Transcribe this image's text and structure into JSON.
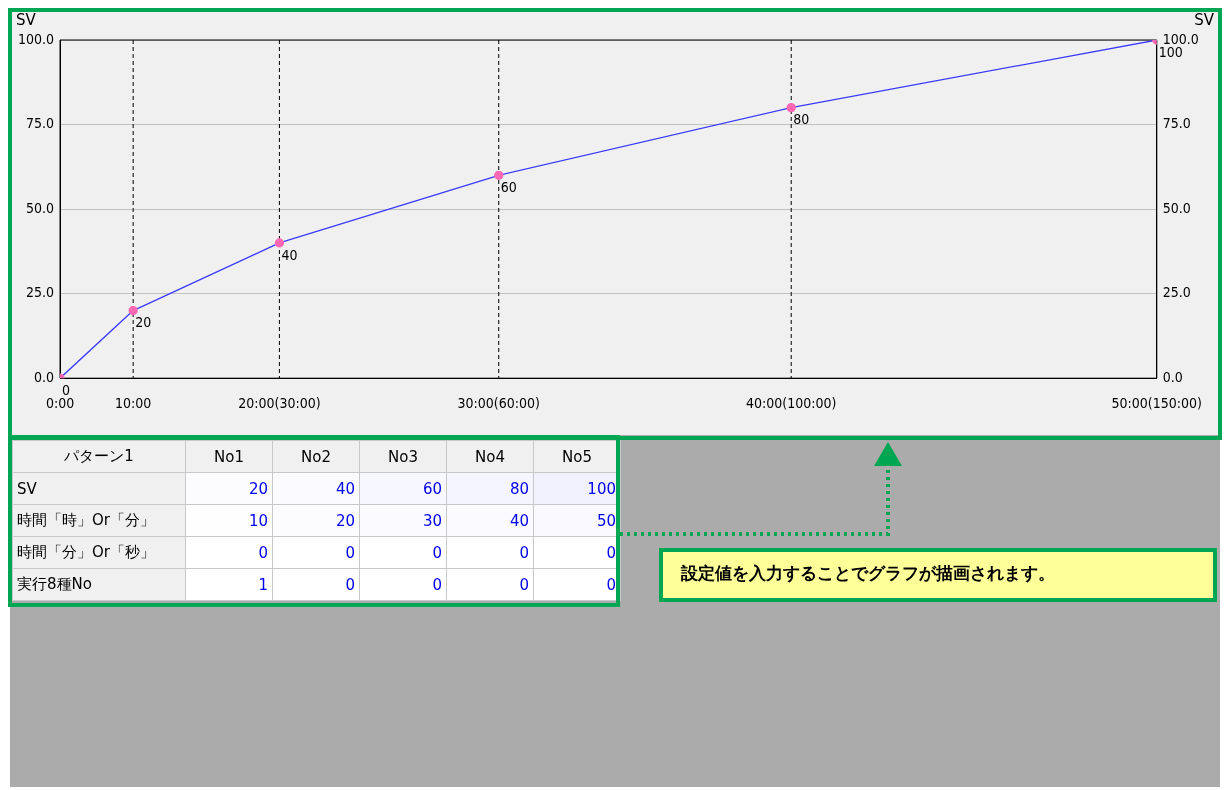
{
  "chart_data": [
    {
      "type": "line",
      "ylabel": "SV",
      "y2label": "SV",
      "x": [
        0,
        10,
        30,
        60,
        100,
        150
      ],
      "series": [
        {
          "color": "#3a3aff",
          "values": [
            0,
            20,
            40,
            60,
            80,
            100
          ]
        }
      ],
      "xlim": [
        0,
        150
      ],
      "xticks": [
        {
          "value": 0,
          "label": "0:00"
        },
        {
          "value": 10,
          "label": "10:00"
        },
        {
          "value": 30,
          "label": "20:00(30:00)"
        },
        {
          "value": 60,
          "label": "30:00(60:00)"
        },
        {
          "value": 100,
          "label": "40:00(100:00)"
        },
        {
          "value": 150,
          "label": "50:00(150:00)"
        }
      ],
      "ylim": [
        0,
        100
      ],
      "yticks": [
        {
          "value": 0,
          "label": "0.0"
        },
        {
          "value": 25,
          "label": "25.0"
        },
        {
          "value": 50,
          "label": "50.0"
        },
        {
          "value": 75,
          "label": "75.0"
        },
        {
          "value": 100,
          "label": "100.0"
        }
      ],
      "y2lim": [
        0,
        100
      ],
      "y2ticks": [
        {
          "value": 0,
          "label": "0.0"
        },
        {
          "value": 25,
          "label": "25.0"
        },
        {
          "value": 50,
          "label": "50.0"
        },
        {
          "value": 75,
          "label": "75.0"
        },
        {
          "value": 100,
          "label": "100.0"
        }
      ],
      "ref_lines": [
        {
          "axis": "x",
          "value": 10,
          "line_style": "dashed",
          "color": "#000000"
        },
        {
          "axis": "x",
          "value": 30,
          "line_style": "dashed",
          "color": "#000000"
        },
        {
          "axis": "x",
          "value": 60,
          "line_style": "dashed",
          "color": "#000000"
        },
        {
          "axis": "x",
          "value": 100,
          "line_style": "dashed",
          "color": "#000000"
        }
      ],
      "grid": "y",
      "marker": "circle",
      "data_labels": true,
      "legend": false
    },
    {
      "type": "heatmap",
      "title": "パターン1",
      "categories": [
        "No1",
        "No2",
        "No3",
        "No4",
        "No5"
      ],
      "y_categories": [
        "SV",
        "時間「時」Or「分」",
        "時間「分」Or「秒」",
        "実行8種No"
      ],
      "cells": [
        [
          20,
          40,
          60,
          80,
          100
        ],
        [
          10,
          20,
          30,
          40,
          50
        ],
        [
          0,
          0,
          0,
          0,
          0
        ],
        [
          1,
          0,
          0,
          0,
          0
        ]
      ],
      "cell_labels": [
        [
          "20",
          "40",
          "60",
          "80",
          "100"
        ],
        [
          "10",
          "20",
          "30",
          "40",
          "50"
        ],
        [
          "0",
          "0",
          "0",
          "0",
          "0"
        ],
        [
          "1",
          "0",
          "0",
          "0",
          "0"
        ]
      ],
      "annotations": [
        "設定値を入力することでグラフが描画されます。"
      ]
    }
  ]
}
